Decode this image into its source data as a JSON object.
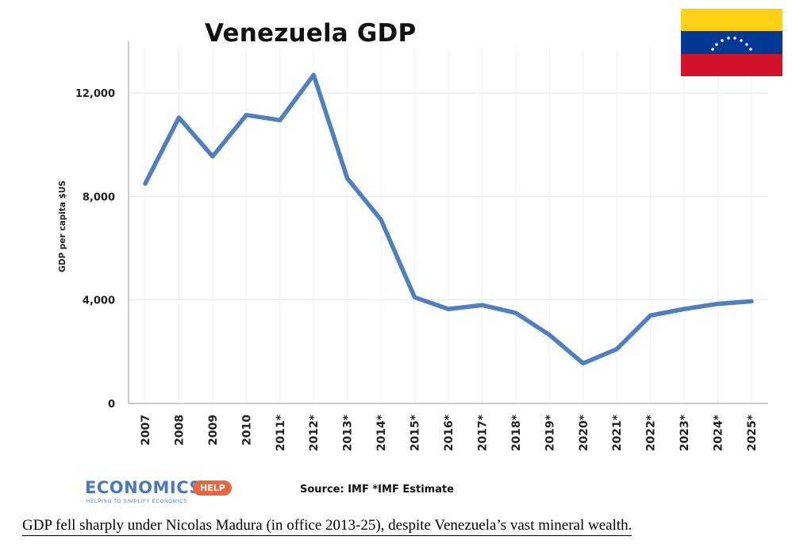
{
  "chart_data": {
    "type": "line",
    "title": "Venezuela GDP",
    "ylabel": "GDP per capita $US",
    "xlabel": "",
    "categories": [
      "2007",
      "2008",
      "2009",
      "2010",
      "2011*",
      "2012*",
      "2013*",
      "2014*",
      "2015*",
      "2016*",
      "2017*",
      "2018*",
      "2019*",
      "2020*",
      "2021*",
      "2022*",
      "2023*",
      "2024*",
      "2025*"
    ],
    "series": [
      {
        "values": [
          8500,
          11050,
          9550,
          11150,
          10950,
          12700,
          8700,
          7100,
          4100,
          3650,
          3800,
          3500,
          2650,
          1550,
          2100,
          3400,
          3650,
          3850,
          3950
        ]
      }
    ],
    "yticks": [
      0,
      4000,
      8000,
      12000
    ],
    "ytick_labels": [
      "0",
      "4,000",
      "8,000",
      "12,000"
    ],
    "ylim": [
      0,
      14000
    ],
    "grid": "horizontal",
    "line_color": "#4f7fbd"
  },
  "source_text": "Source: IMF *IMF Estimate",
  "caption": "GDP fell sharply under Nicolas Madura (in office 2013-25), despite Venezuela’s vast mineral wealth.",
  "logo": {
    "word": "ECONOMICS",
    "tag": "HELP",
    "tagline": "HELPING TO SIMPLIFY ECONOMICS"
  },
  "flag_colors": [
    "#fcd116",
    "#003893",
    "#cf142b"
  ]
}
